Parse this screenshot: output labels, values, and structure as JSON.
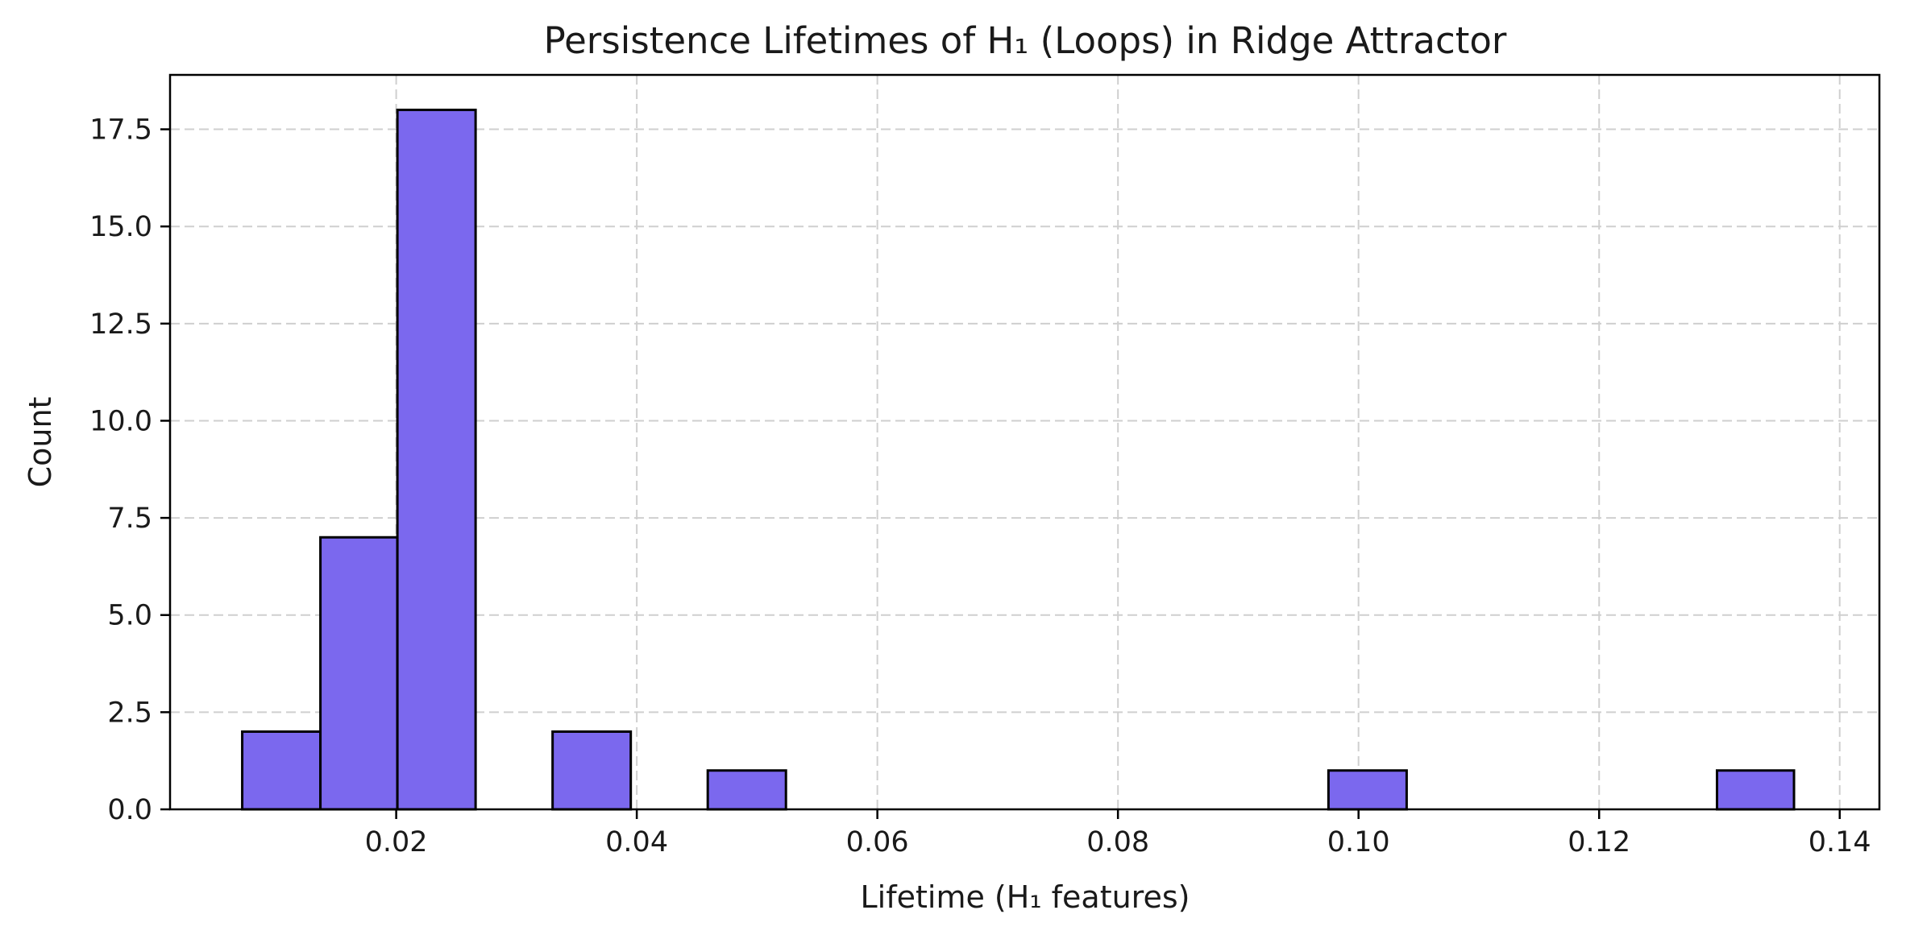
{
  "chart_data": {
    "type": "bar",
    "title": "Persistence Lifetimes of H₁ (Loops) in Ridge Attractor",
    "xlabel": "Lifetime (H₁ features)",
    "ylabel": "Count",
    "xlim": [
      0.0012,
      0.1433
    ],
    "ylim": [
      0,
      18.9
    ],
    "xticks": [
      0.02,
      0.04,
      0.06,
      0.08,
      0.1,
      0.12,
      0.14
    ],
    "xtick_labels": [
      "0.02",
      "0.04",
      "0.06",
      "0.08",
      "0.10",
      "0.12",
      "0.14"
    ],
    "yticks": [
      0,
      2.5,
      5,
      7.5,
      10,
      12.5,
      15,
      17.5
    ],
    "ytick_labels": [
      "0.0",
      "2.5",
      "5.0",
      "7.5",
      "10.0",
      "12.5",
      "15.0",
      "17.5"
    ],
    "bins": [
      {
        "x0": 0.0072,
        "x1": 0.0137,
        "count": 2
      },
      {
        "x0": 0.0137,
        "x1": 0.0201,
        "count": 7
      },
      {
        "x0": 0.0201,
        "x1": 0.0266,
        "count": 18
      },
      {
        "x0": 0.0266,
        "x1": 0.033,
        "count": 0
      },
      {
        "x0": 0.033,
        "x1": 0.0395,
        "count": 2
      },
      {
        "x0": 0.0395,
        "x1": 0.0459,
        "count": 0
      },
      {
        "x0": 0.0459,
        "x1": 0.0524,
        "count": 1
      },
      {
        "x0": 0.0524,
        "x1": 0.0588,
        "count": 0
      },
      {
        "x0": 0.0588,
        "x1": 0.0653,
        "count": 0
      },
      {
        "x0": 0.0653,
        "x1": 0.0717,
        "count": 0
      },
      {
        "x0": 0.0717,
        "x1": 0.0782,
        "count": 0
      },
      {
        "x0": 0.0782,
        "x1": 0.0846,
        "count": 0
      },
      {
        "x0": 0.0846,
        "x1": 0.0911,
        "count": 0
      },
      {
        "x0": 0.0911,
        "x1": 0.0975,
        "count": 0
      },
      {
        "x0": 0.0975,
        "x1": 0.104,
        "count": 1
      },
      {
        "x0": 0.104,
        "x1": 0.1104,
        "count": 0
      },
      {
        "x0": 0.1104,
        "x1": 0.1169,
        "count": 0
      },
      {
        "x0": 0.1169,
        "x1": 0.1233,
        "count": 0
      },
      {
        "x0": 0.1233,
        "x1": 0.1298,
        "count": 0
      },
      {
        "x0": 0.1298,
        "x1": 0.1362,
        "count": 1
      }
    ],
    "bar_color": "#7b68ee",
    "edge_color": "#000000",
    "grid": true,
    "legend": "none"
  }
}
